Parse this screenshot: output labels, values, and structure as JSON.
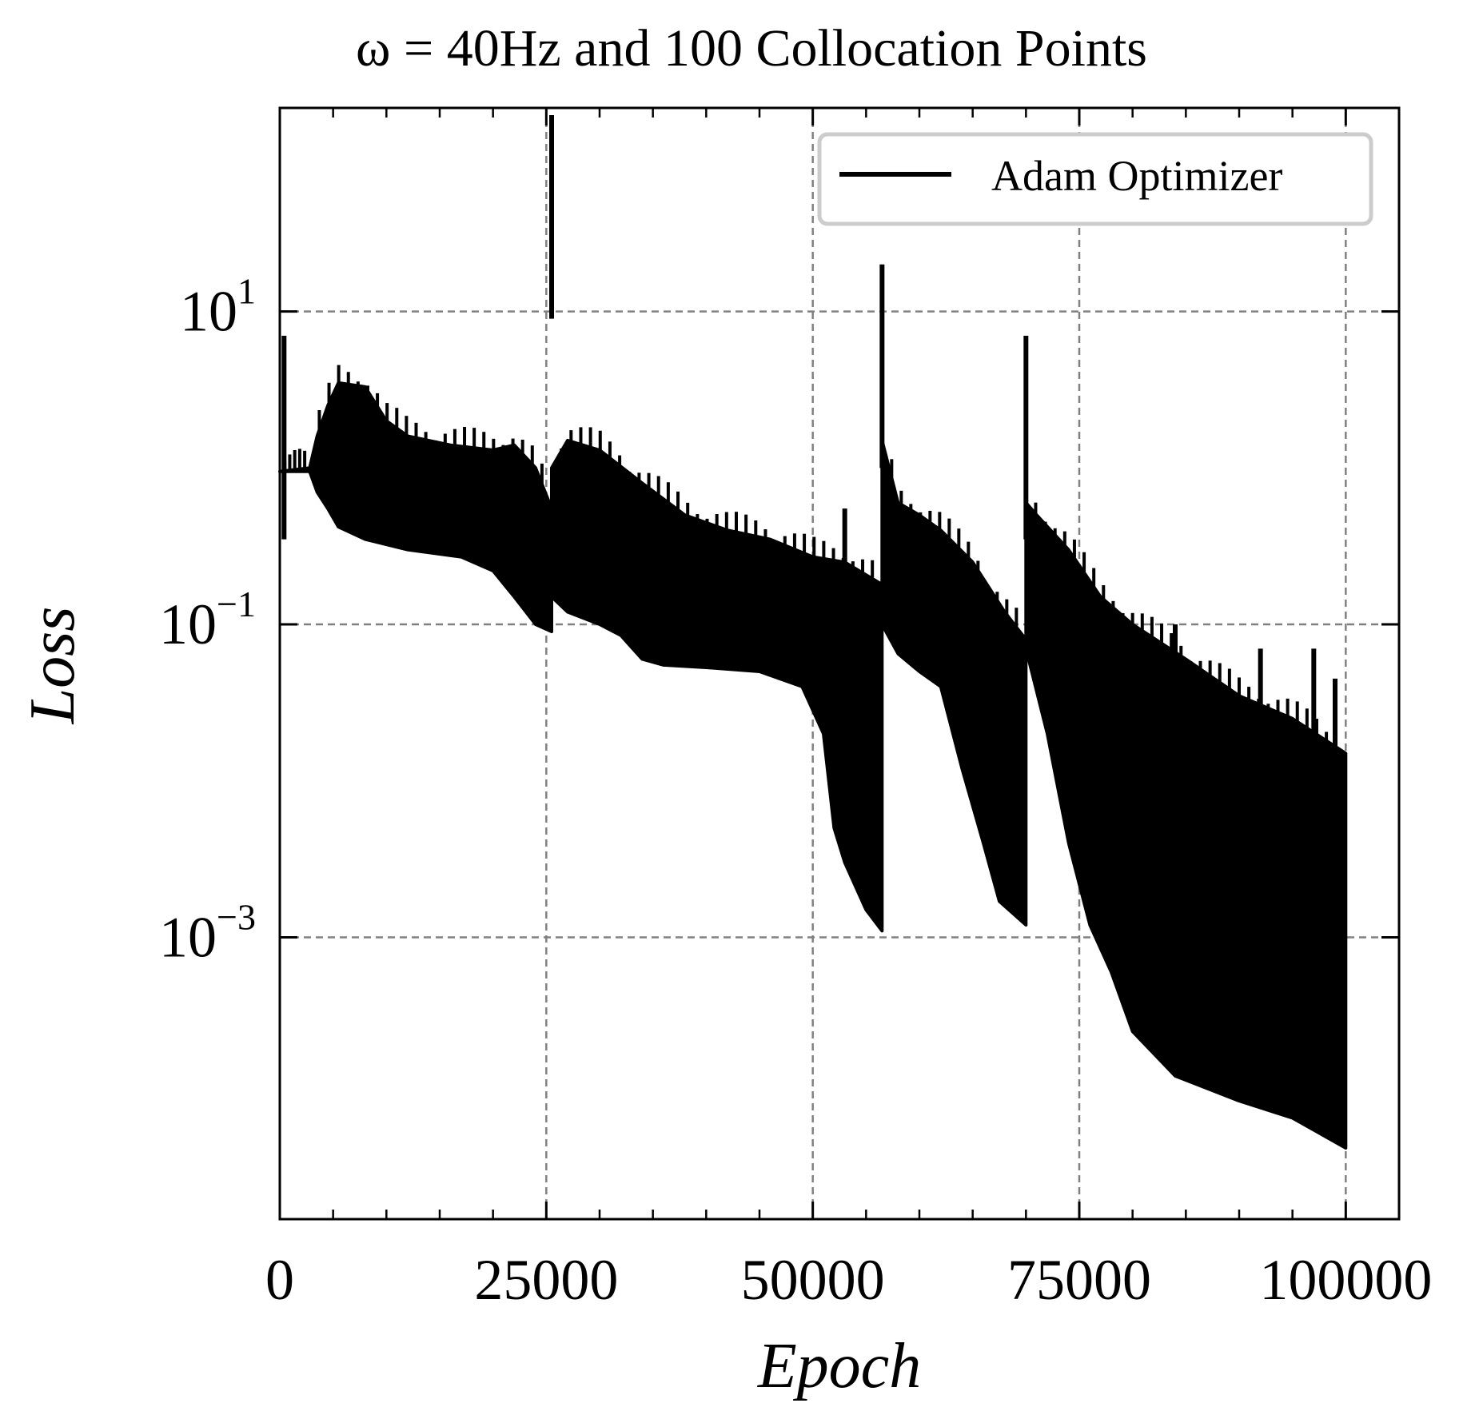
{
  "chart_data": {
    "type": "line",
    "title": "ω = 40Hz and 100 Collocation Points",
    "xlabel": "Epoch",
    "ylabel": "Loss",
    "xlim": [
      0,
      105000
    ],
    "ylim": [
      1.58e-05,
      200
    ],
    "yscale": "log",
    "grid": true,
    "legend_position": "top-right",
    "x_ticks": [
      {
        "value": 0,
        "label": "0"
      },
      {
        "value": 25000,
        "label": "25000"
      },
      {
        "value": 50000,
        "label": "50000"
      },
      {
        "value": 75000,
        "label": "75000"
      },
      {
        "value": 100000,
        "label": "100000"
      }
    ],
    "y_ticks": [
      {
        "value": 10,
        "base": "10",
        "exp": "1"
      },
      {
        "value": 0.1,
        "base": "10",
        "exp": "−1"
      },
      {
        "value": 0.001,
        "base": "10",
        "exp": "−3"
      }
    ],
    "series": [
      {
        "name": "Adam Optimizer",
        "color": "#000000",
        "segments": [
          {
            "x_start": 0,
            "x_end": 2800,
            "upper": [
              [
                0,
                0.95
              ],
              [
                2800,
                1.0
              ]
            ],
            "lower": [
              [
                0,
                0.95
              ],
              [
                2800,
                0.95
              ]
            ]
          },
          {
            "x_start": 2800,
            "x_end": 25500,
            "upper": [
              [
                2800,
                1.0
              ],
              [
                3500,
                1.6
              ],
              [
                4500,
                2.5
              ],
              [
                5500,
                3.5
              ],
              [
                8000,
                3.3
              ],
              [
                10000,
                2.0
              ],
              [
                12000,
                1.6
              ],
              [
                16000,
                1.4
              ],
              [
                20000,
                1.3
              ],
              [
                22000,
                1.4
              ],
              [
                24000,
                1.0
              ],
              [
                25500,
                0.55
              ]
            ],
            "lower": [
              [
                2800,
                0.95
              ],
              [
                3500,
                0.7
              ],
              [
                4500,
                0.55
              ],
              [
                5500,
                0.42
              ],
              [
                8000,
                0.35
              ],
              [
                12000,
                0.3
              ],
              [
                17000,
                0.27
              ],
              [
                20000,
                0.22
              ],
              [
                22000,
                0.15
              ],
              [
                24000,
                0.1
              ],
              [
                25500,
                0.09
              ]
            ]
          },
          {
            "x_start": 25500,
            "x_end": 56500,
            "upper": [
              [
                25500,
                1.0
              ],
              [
                27000,
                1.5
              ],
              [
                30000,
                1.3
              ],
              [
                34000,
                0.8
              ],
              [
                38000,
                0.5
              ],
              [
                42000,
                0.4
              ],
              [
                46000,
                0.35
              ],
              [
                50000,
                0.27
              ],
              [
                53000,
                0.25
              ],
              [
                56500,
                0.18
              ]
            ],
            "lower": [
              [
                25500,
                0.15
              ],
              [
                27000,
                0.12
              ],
              [
                30000,
                0.1
              ],
              [
                32000,
                0.085
              ],
              [
                34000,
                0.06
              ],
              [
                36000,
                0.055
              ],
              [
                40000,
                0.053
              ],
              [
                45000,
                0.05
              ],
              [
                49000,
                0.04
              ],
              [
                51000,
                0.02
              ],
              [
                52000,
                0.005
              ],
              [
                53000,
                0.003
              ],
              [
                55000,
                0.0015
              ],
              [
                56500,
                0.0011
              ]
            ]
          },
          {
            "x_start": 56500,
            "x_end": 70000,
            "upper": [
              [
                56500,
                1.5
              ],
              [
                58000,
                0.6
              ],
              [
                60000,
                0.5
              ],
              [
                62000,
                0.4
              ],
              [
                65000,
                0.25
              ],
              [
                68000,
                0.12
              ],
              [
                70000,
                0.08
              ]
            ],
            "lower": [
              [
                56500,
                0.1
              ],
              [
                58000,
                0.065
              ],
              [
                60000,
                0.05
              ],
              [
                62000,
                0.04
              ],
              [
                64000,
                0.012
              ],
              [
                66000,
                0.004
              ],
              [
                67500,
                0.0017
              ],
              [
                70000,
                0.0012
              ]
            ]
          },
          {
            "x_start": 70000,
            "x_end": 100000,
            "upper": [
              [
                70000,
                0.6
              ],
              [
                71000,
                0.5
              ],
              [
                74000,
                0.3
              ],
              [
                77000,
                0.15
              ],
              [
                80000,
                0.1
              ],
              [
                85000,
                0.06
              ],
              [
                90000,
                0.035
              ],
              [
                95000,
                0.025
              ],
              [
                100000,
                0.015
              ]
            ],
            "lower": [
              [
                70000,
                0.07
              ],
              [
                72000,
                0.02
              ],
              [
                74000,
                0.004
              ],
              [
                76000,
                0.0012
              ],
              [
                78000,
                0.0006
              ],
              [
                80000,
                0.00025
              ],
              [
                84000,
                0.00013
              ],
              [
                90000,
                9e-05
              ],
              [
                95000,
                7e-05
              ],
              [
                100000,
                4.5e-05
              ]
            ]
          }
        ],
        "spikes": [
          {
            "x": 400,
            "y": 7
          },
          {
            "x": 25500,
            "y": 180
          },
          {
            "x": 56500,
            "y": 20
          },
          {
            "x": 70000,
            "y": 7
          },
          {
            "x": 53000,
            "y": 0.55
          },
          {
            "x": 84000,
            "y": 0.1
          },
          {
            "x": 92000,
            "y": 0.07
          },
          {
            "x": 97000,
            "y": 0.07
          },
          {
            "x": 99000,
            "y": 0.045
          }
        ]
      }
    ]
  }
}
